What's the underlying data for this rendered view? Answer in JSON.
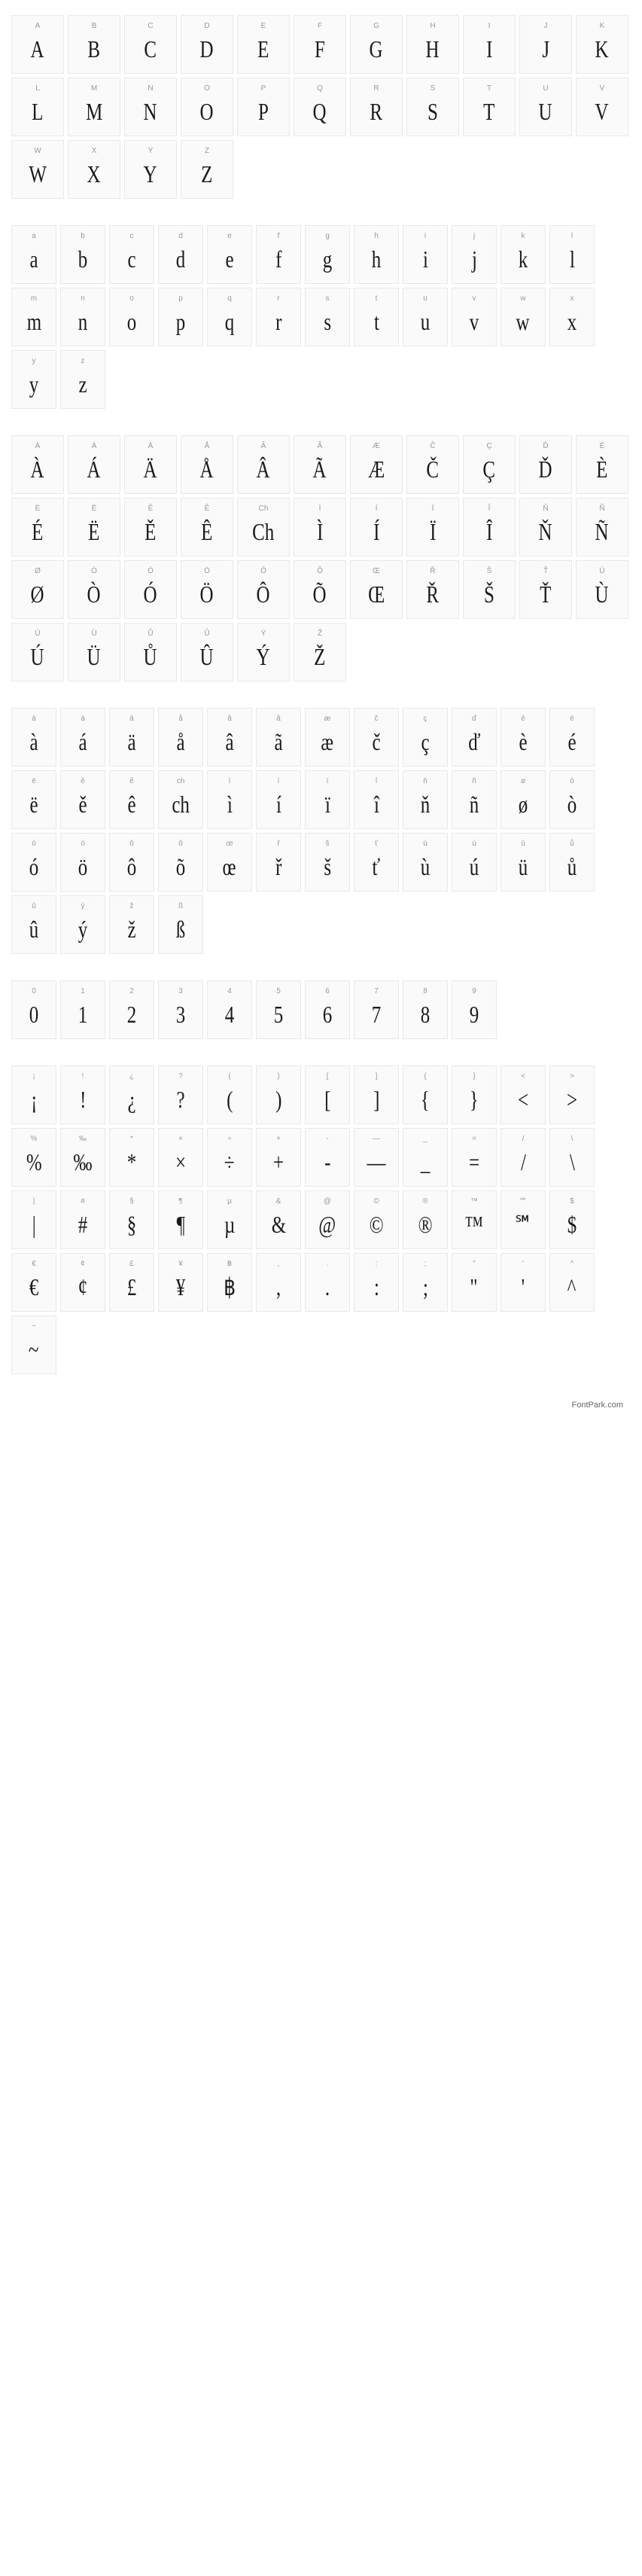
{
  "footer": "FontPark.com",
  "cell_bg": "#fafafa",
  "cell_border": "#e8e8e8",
  "label_color": "#999999",
  "glyph_color": "#1a1a1a",
  "sections": [
    {
      "size": "cell-s",
      "cells": [
        {
          "lbl": "A",
          "g": "A"
        },
        {
          "lbl": "B",
          "g": "B"
        },
        {
          "lbl": "C",
          "g": "C"
        },
        {
          "lbl": "D",
          "g": "D"
        },
        {
          "lbl": "E",
          "g": "E"
        },
        {
          "lbl": "F",
          "g": "F"
        },
        {
          "lbl": "G",
          "g": "G"
        },
        {
          "lbl": "H",
          "g": "H"
        },
        {
          "lbl": "I",
          "g": "I"
        },
        {
          "lbl": "J",
          "g": "J"
        },
        {
          "lbl": "K",
          "g": "K"
        },
        {
          "lbl": "L",
          "g": "L"
        },
        {
          "lbl": "M",
          "g": "M"
        },
        {
          "lbl": "N",
          "g": "N"
        },
        {
          "lbl": "O",
          "g": "O"
        },
        {
          "lbl": "P",
          "g": "P"
        },
        {
          "lbl": "Q",
          "g": "Q"
        },
        {
          "lbl": "R",
          "g": "R"
        },
        {
          "lbl": "S",
          "g": "S"
        },
        {
          "lbl": "T",
          "g": "T"
        },
        {
          "lbl": "U",
          "g": "U"
        },
        {
          "lbl": "V",
          "g": "V"
        },
        {
          "lbl": "W",
          "g": "W"
        },
        {
          "lbl": "X",
          "g": "X"
        },
        {
          "lbl": "Y",
          "g": "Y"
        },
        {
          "lbl": "Z",
          "g": "Z"
        }
      ]
    },
    {
      "size": "cell-m",
      "cells": [
        {
          "lbl": "a",
          "g": "a"
        },
        {
          "lbl": "b",
          "g": "b"
        },
        {
          "lbl": "c",
          "g": "c"
        },
        {
          "lbl": "d",
          "g": "d"
        },
        {
          "lbl": "e",
          "g": "e"
        },
        {
          "lbl": "f",
          "g": "f"
        },
        {
          "lbl": "g",
          "g": "g"
        },
        {
          "lbl": "h",
          "g": "h"
        },
        {
          "lbl": "i",
          "g": "i"
        },
        {
          "lbl": "j",
          "g": "j"
        },
        {
          "lbl": "k",
          "g": "k"
        },
        {
          "lbl": "l",
          "g": "l"
        },
        {
          "lbl": "m",
          "g": "m"
        },
        {
          "lbl": "n",
          "g": "n"
        },
        {
          "lbl": "o",
          "g": "o"
        },
        {
          "lbl": "p",
          "g": "p"
        },
        {
          "lbl": "q",
          "g": "q"
        },
        {
          "lbl": "r",
          "g": "r"
        },
        {
          "lbl": "s",
          "g": "s"
        },
        {
          "lbl": "t",
          "g": "t"
        },
        {
          "lbl": "u",
          "g": "u"
        },
        {
          "lbl": "v",
          "g": "v"
        },
        {
          "lbl": "w",
          "g": "w"
        },
        {
          "lbl": "x",
          "g": "x"
        },
        {
          "lbl": "y",
          "g": "y"
        },
        {
          "lbl": "z",
          "g": "z"
        }
      ]
    },
    {
      "size": "cell-s",
      "cells": [
        {
          "lbl": "À",
          "g": "À"
        },
        {
          "lbl": "Á",
          "g": "Á"
        },
        {
          "lbl": "Ä",
          "g": "Ä"
        },
        {
          "lbl": "Å",
          "g": "Å"
        },
        {
          "lbl": "Â",
          "g": "Â"
        },
        {
          "lbl": "Ã",
          "g": "Ã"
        },
        {
          "lbl": "Æ",
          "g": "Æ"
        },
        {
          "lbl": "Č",
          "g": "Č"
        },
        {
          "lbl": "Ç",
          "g": "Ç"
        },
        {
          "lbl": "Ď",
          "g": "Ď"
        },
        {
          "lbl": "È",
          "g": "È"
        },
        {
          "lbl": "É",
          "g": "É"
        },
        {
          "lbl": "Ë",
          "g": "Ë"
        },
        {
          "lbl": "Ě",
          "g": "Ě"
        },
        {
          "lbl": "Ê",
          "g": "Ê"
        },
        {
          "lbl": "Ch",
          "g": "Ch"
        },
        {
          "lbl": "Ì",
          "g": "Ì"
        },
        {
          "lbl": "Í",
          "g": "Í"
        },
        {
          "lbl": "Ï",
          "g": "Ï"
        },
        {
          "lbl": "Î",
          "g": "Î"
        },
        {
          "lbl": "Ň",
          "g": "Ň"
        },
        {
          "lbl": "Ñ",
          "g": "Ñ"
        },
        {
          "lbl": "Ø",
          "g": "Ø"
        },
        {
          "lbl": "Ò",
          "g": "Ò"
        },
        {
          "lbl": "Ó",
          "g": "Ó"
        },
        {
          "lbl": "Ö",
          "g": "Ö"
        },
        {
          "lbl": "Ô",
          "g": "Ô"
        },
        {
          "lbl": "Õ",
          "g": "Õ"
        },
        {
          "lbl": "Œ",
          "g": "Œ"
        },
        {
          "lbl": "Ř",
          "g": "Ř"
        },
        {
          "lbl": "Š",
          "g": "Š"
        },
        {
          "lbl": "Ť",
          "g": "Ť"
        },
        {
          "lbl": "Ù",
          "g": "Ù"
        },
        {
          "lbl": "Ú",
          "g": "Ú"
        },
        {
          "lbl": "Ü",
          "g": "Ü"
        },
        {
          "lbl": "Ů",
          "g": "Ů"
        },
        {
          "lbl": "Û",
          "g": "Û"
        },
        {
          "lbl": "Ý",
          "g": "Ý"
        },
        {
          "lbl": "Ž",
          "g": "Ž"
        }
      ]
    },
    {
      "size": "cell-m",
      "cells": [
        {
          "lbl": "à",
          "g": "à"
        },
        {
          "lbl": "á",
          "g": "á"
        },
        {
          "lbl": "ä",
          "g": "ä"
        },
        {
          "lbl": "å",
          "g": "å"
        },
        {
          "lbl": "â",
          "g": "â"
        },
        {
          "lbl": "ã",
          "g": "ã"
        },
        {
          "lbl": "æ",
          "g": "æ"
        },
        {
          "lbl": "č",
          "g": "č"
        },
        {
          "lbl": "ç",
          "g": "ç"
        },
        {
          "lbl": "ď",
          "g": "ď"
        },
        {
          "lbl": "è",
          "g": "è"
        },
        {
          "lbl": "é",
          "g": "é"
        },
        {
          "lbl": "ë",
          "g": "ë"
        },
        {
          "lbl": "ě",
          "g": "ě"
        },
        {
          "lbl": "ê",
          "g": "ê"
        },
        {
          "lbl": "ch",
          "g": "ch"
        },
        {
          "lbl": "ì",
          "g": "ì"
        },
        {
          "lbl": "í",
          "g": "í"
        },
        {
          "lbl": "ï",
          "g": "ï"
        },
        {
          "lbl": "î",
          "g": "î"
        },
        {
          "lbl": "ň",
          "g": "ň"
        },
        {
          "lbl": "ñ",
          "g": "ñ"
        },
        {
          "lbl": "ø",
          "g": "ø"
        },
        {
          "lbl": "ò",
          "g": "ò"
        },
        {
          "lbl": "ó",
          "g": "ó"
        },
        {
          "lbl": "ö",
          "g": "ö"
        },
        {
          "lbl": "ô",
          "g": "ô"
        },
        {
          "lbl": "õ",
          "g": "õ"
        },
        {
          "lbl": "œ",
          "g": "œ"
        },
        {
          "lbl": "ř",
          "g": "ř"
        },
        {
          "lbl": "š",
          "g": "š"
        },
        {
          "lbl": "ť",
          "g": "ť"
        },
        {
          "lbl": "ù",
          "g": "ù"
        },
        {
          "lbl": "ú",
          "g": "ú"
        },
        {
          "lbl": "ü",
          "g": "ü"
        },
        {
          "lbl": "ů",
          "g": "ů"
        },
        {
          "lbl": "û",
          "g": "û"
        },
        {
          "lbl": "ý",
          "g": "ý"
        },
        {
          "lbl": "ž",
          "g": "ž"
        },
        {
          "lbl": "ß",
          "g": "ß"
        }
      ]
    },
    {
      "size": "cell-m",
      "cells": [
        {
          "lbl": "0",
          "g": "0"
        },
        {
          "lbl": "1",
          "g": "1"
        },
        {
          "lbl": "2",
          "g": "2"
        },
        {
          "lbl": "3",
          "g": "3"
        },
        {
          "lbl": "4",
          "g": "4"
        },
        {
          "lbl": "5",
          "g": "5"
        },
        {
          "lbl": "6",
          "g": "6"
        },
        {
          "lbl": "7",
          "g": "7"
        },
        {
          "lbl": "8",
          "g": "8"
        },
        {
          "lbl": "9",
          "g": "9"
        }
      ]
    },
    {
      "size": "cell-m",
      "cells": [
        {
          "lbl": "¡",
          "g": "¡"
        },
        {
          "lbl": "!",
          "g": "!"
        },
        {
          "lbl": "¿",
          "g": "¿"
        },
        {
          "lbl": "?",
          "g": "?"
        },
        {
          "lbl": "(",
          "g": "("
        },
        {
          "lbl": ")",
          "g": ")"
        },
        {
          "lbl": "[",
          "g": "["
        },
        {
          "lbl": "]",
          "g": "]"
        },
        {
          "lbl": "{",
          "g": "{"
        },
        {
          "lbl": "}",
          "g": "}"
        },
        {
          "lbl": "<",
          "g": "<"
        },
        {
          "lbl": ">",
          "g": ">"
        },
        {
          "lbl": "%",
          "g": "%"
        },
        {
          "lbl": "‰",
          "g": "‰"
        },
        {
          "lbl": "*",
          "g": "*"
        },
        {
          "lbl": "×",
          "g": "×"
        },
        {
          "lbl": "÷",
          "g": "÷"
        },
        {
          "lbl": "+",
          "g": "+"
        },
        {
          "lbl": "-",
          "g": "-"
        },
        {
          "lbl": "—",
          "g": "—"
        },
        {
          "lbl": "_",
          "g": "_"
        },
        {
          "lbl": "=",
          "g": "="
        },
        {
          "lbl": "/",
          "g": "/"
        },
        {
          "lbl": "\\",
          "g": "\\"
        },
        {
          "lbl": "|",
          "g": "|"
        },
        {
          "lbl": "#",
          "g": "#"
        },
        {
          "lbl": "§",
          "g": "§"
        },
        {
          "lbl": "¶",
          "g": "¶"
        },
        {
          "lbl": "µ",
          "g": "µ"
        },
        {
          "lbl": "&",
          "g": "&"
        },
        {
          "lbl": "@",
          "g": "@"
        },
        {
          "lbl": "©",
          "g": "©"
        },
        {
          "lbl": "®",
          "g": "®"
        },
        {
          "lbl": "™",
          "g": "™"
        },
        {
          "lbl": "℠",
          "g": "℠"
        },
        {
          "lbl": "$",
          "g": "$"
        },
        {
          "lbl": "€",
          "g": "€"
        },
        {
          "lbl": "¢",
          "g": "¢"
        },
        {
          "lbl": "£",
          "g": "£"
        },
        {
          "lbl": "¥",
          "g": "¥"
        },
        {
          "lbl": "฿",
          "g": "฿"
        },
        {
          "lbl": ",",
          "g": ","
        },
        {
          "lbl": ".",
          "g": "."
        },
        {
          "lbl": ":",
          "g": ":"
        },
        {
          "lbl": ";",
          "g": ";"
        },
        {
          "lbl": "\"",
          "g": "\""
        },
        {
          "lbl": "'",
          "g": "'"
        },
        {
          "lbl": "^",
          "g": "^"
        },
        {
          "lbl": "~",
          "g": "~"
        }
      ]
    }
  ]
}
